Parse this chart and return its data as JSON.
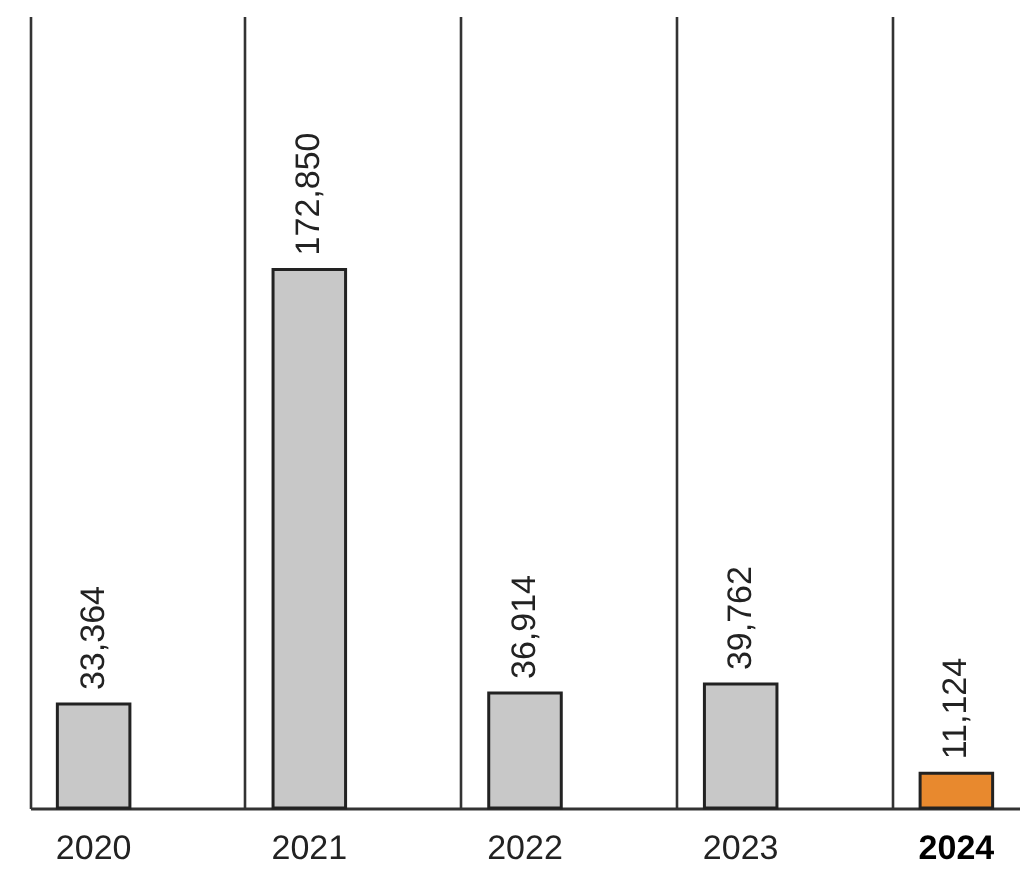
{
  "chart_data": {
    "type": "bar",
    "categories": [
      "2020",
      "2021",
      "2022",
      "2023",
      "2024"
    ],
    "values": [
      33364,
      172850,
      36914,
      39762,
      11124
    ],
    "value_labels": [
      "33,364",
      "172,850",
      "36,914",
      "39,762",
      "11,124"
    ],
    "colors": [
      "#c8c8c8",
      "#c8c8c8",
      "#c8c8c8",
      "#c8c8c8",
      "#e8892e"
    ],
    "grid": "x"
  }
}
